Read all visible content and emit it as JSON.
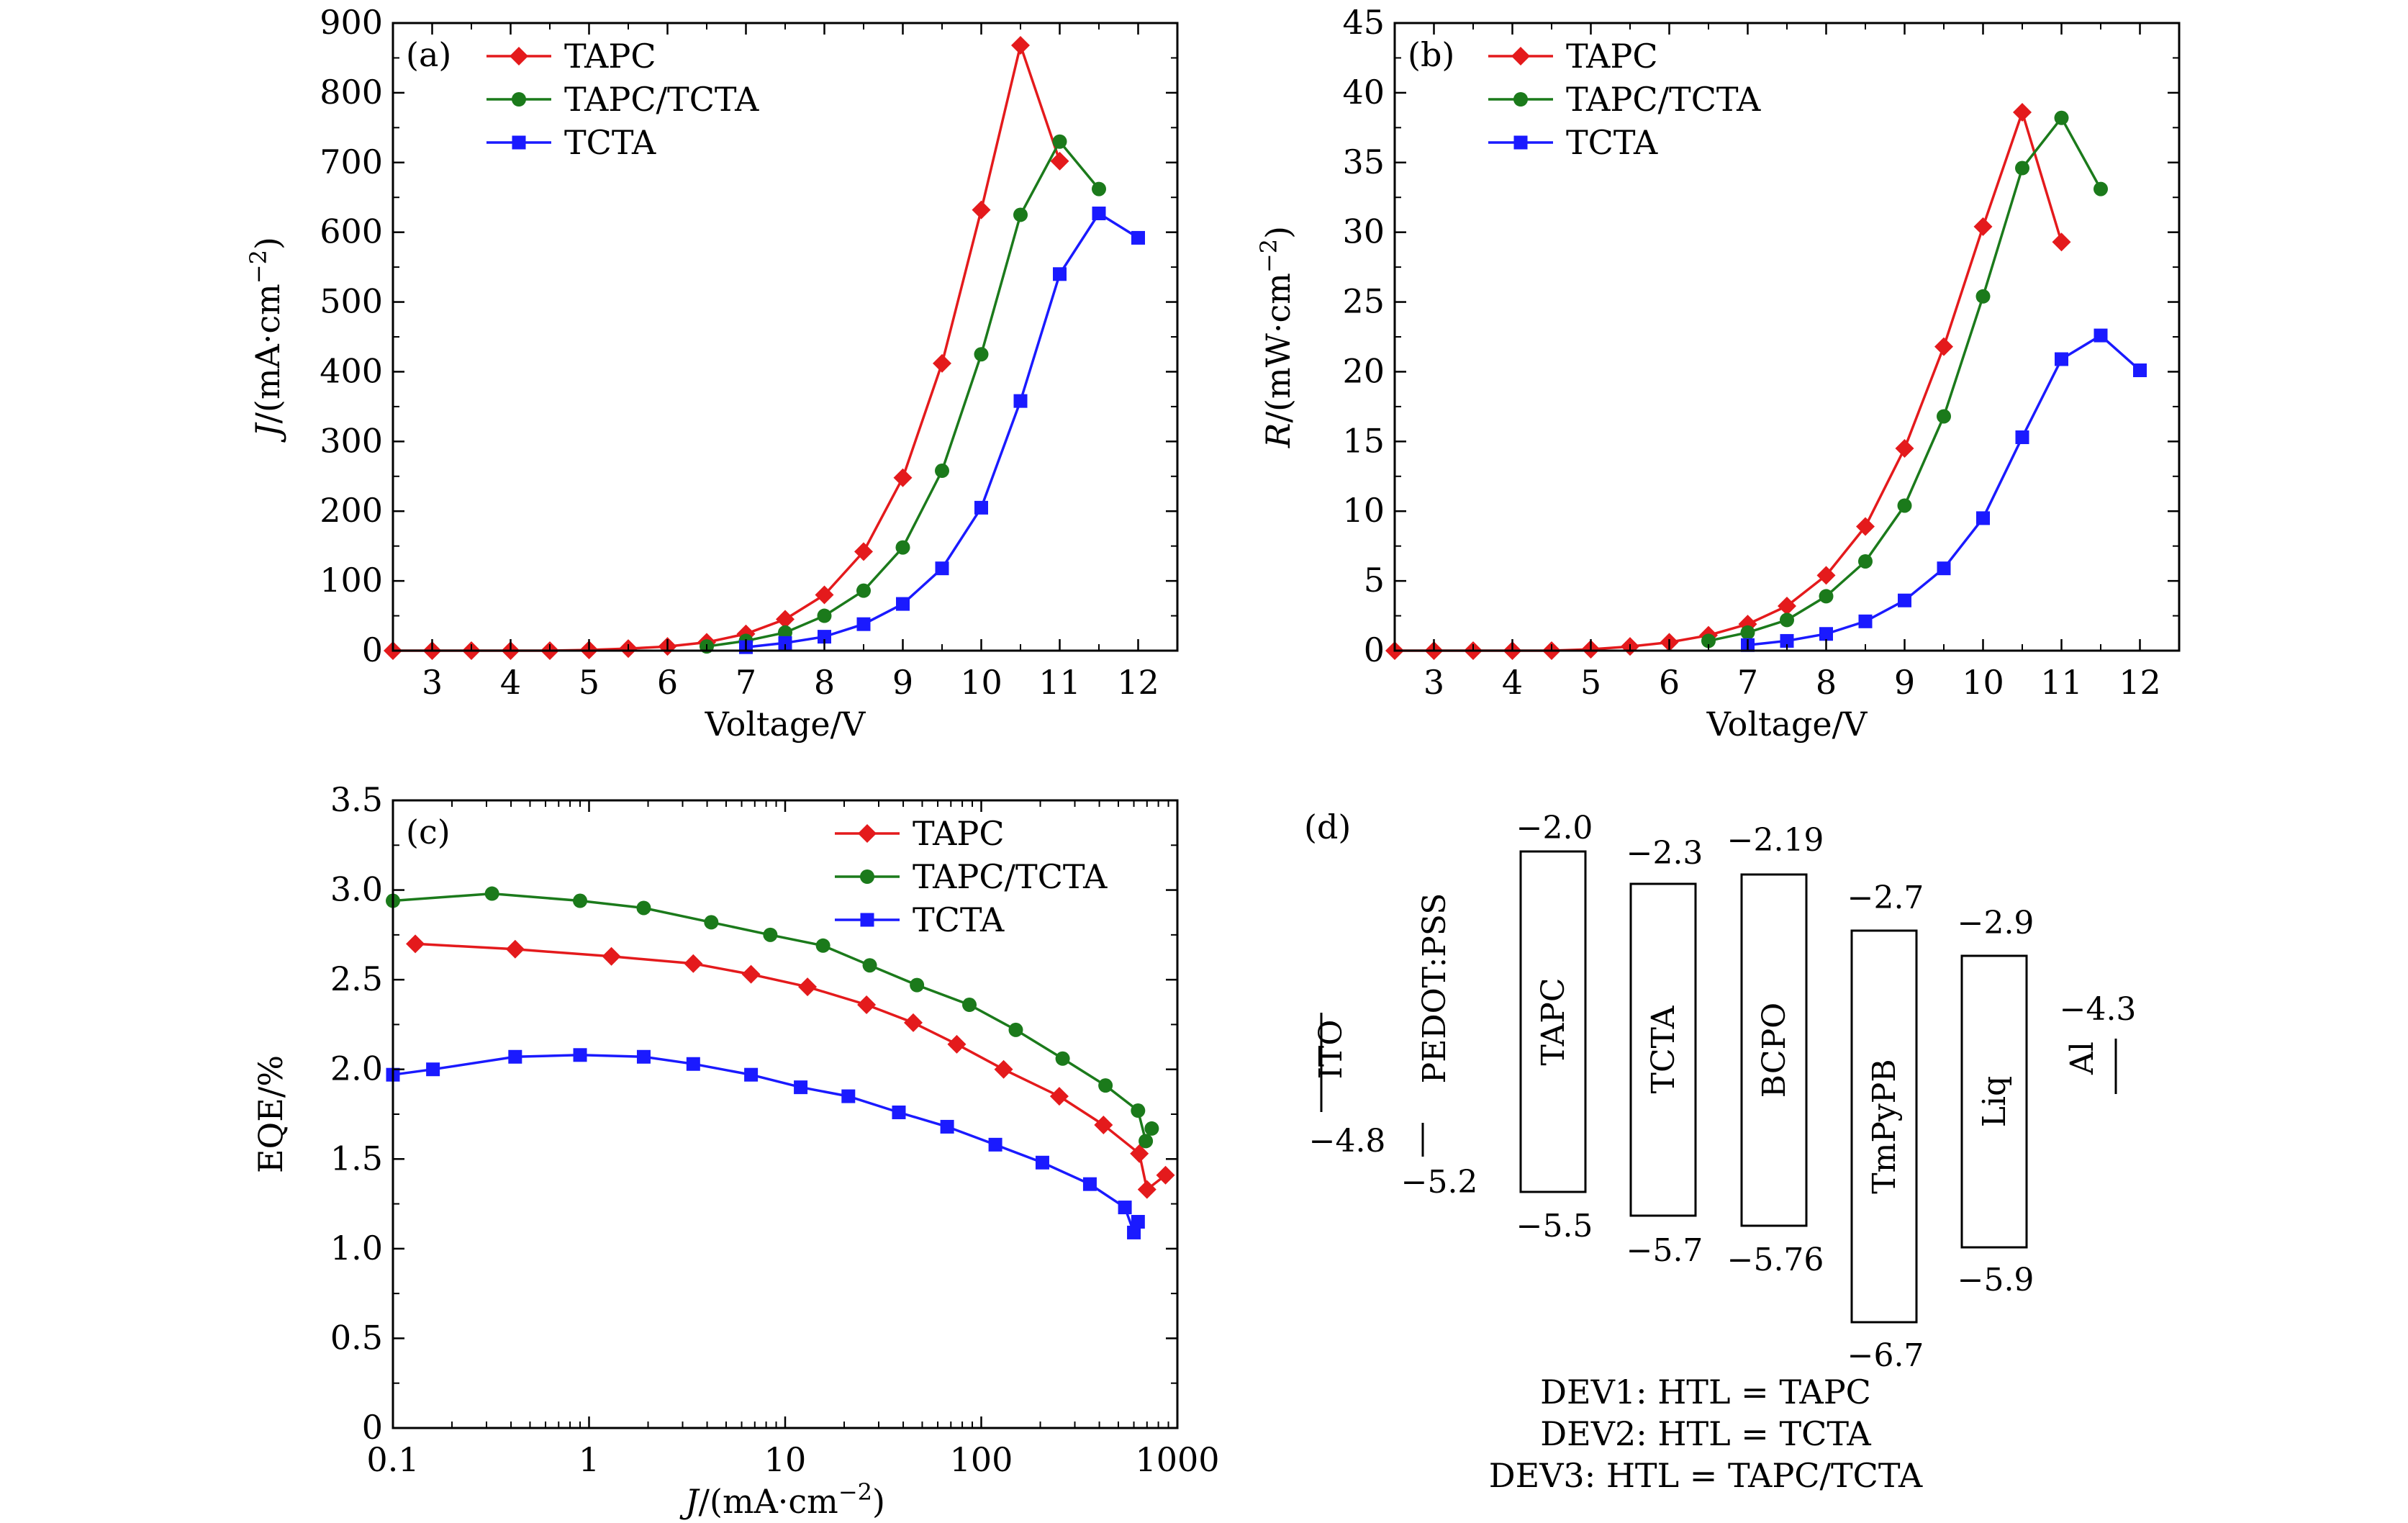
{
  "chart_data": [
    {
      "panel": "(a)",
      "type": "line",
      "xlabel": "Voltage/V",
      "ylabel": "J/(mA·cm⁻²)",
      "xlim": [
        2.5,
        12.5
      ],
      "ylim": [
        0,
        900
      ],
      "xticks": [
        "3",
        "4",
        "5",
        "6",
        "7",
        "8",
        "9",
        "10",
        "11",
        "12"
      ],
      "yticks": [
        "0",
        "100",
        "200",
        "300",
        "400",
        "500",
        "600",
        "700",
        "800",
        "900"
      ],
      "legend_position": "top-left",
      "series": [
        {
          "name": "TAPC",
          "color": "#e41a1c",
          "marker": "diamond",
          "x": [
            2.5,
            3,
            3.5,
            4,
            4.5,
            5,
            5.5,
            6,
            6.5,
            7,
            7.5,
            8,
            8.5,
            9,
            9.5,
            10,
            10.5,
            11
          ],
          "y": [
            0,
            0,
            0,
            0,
            0,
            1,
            3,
            6,
            12,
            24,
            45,
            80,
            142,
            248,
            412,
            632,
            868,
            702
          ]
        },
        {
          "name": "TAPC/TCTA",
          "color": "#1b7a1b",
          "marker": "circle",
          "x": [
            6.5,
            7,
            7.5,
            8,
            8.5,
            9,
            9.5,
            10,
            10.5,
            11,
            11.5
          ],
          "y": [
            6,
            14,
            26,
            50,
            86,
            148,
            258,
            425,
            625,
            730,
            662
          ]
        },
        {
          "name": "TCTA",
          "color": "#1a1aff",
          "marker": "square",
          "x": [
            7,
            7.5,
            8,
            8.5,
            9,
            9.5,
            10,
            10.5,
            11,
            11.5,
            12
          ],
          "y": [
            5,
            11,
            20,
            38,
            67,
            118,
            205,
            358,
            540,
            627,
            592
          ]
        }
      ]
    },
    {
      "panel": "(b)",
      "type": "line",
      "xlabel": "Voltage/V",
      "ylabel": "R/(mW·cm⁻²)",
      "xlim": [
        2.5,
        12.5
      ],
      "ylim": [
        0,
        45
      ],
      "xticks": [
        "3",
        "4",
        "5",
        "6",
        "7",
        "8",
        "9",
        "10",
        "11",
        "12"
      ],
      "yticks": [
        "0",
        "5",
        "10",
        "15",
        "20",
        "25",
        "30",
        "35",
        "40",
        "45"
      ],
      "legend_position": "top-left",
      "series": [
        {
          "name": "TAPC",
          "color": "#e41a1c",
          "marker": "diamond",
          "x": [
            2.5,
            3,
            3.5,
            4,
            4.5,
            5,
            5.5,
            6,
            6.5,
            7,
            7.5,
            8,
            8.5,
            9,
            9.5,
            10,
            10.5,
            11
          ],
          "y": [
            0,
            0,
            0,
            0,
            0,
            0.1,
            0.3,
            0.6,
            1.1,
            1.9,
            3.2,
            5.4,
            8.9,
            14.5,
            21.8,
            30.4,
            38.6,
            29.3
          ]
        },
        {
          "name": "TAPC/TCTA",
          "color": "#1b7a1b",
          "marker": "circle",
          "x": [
            6.5,
            7,
            7.5,
            8,
            8.5,
            9,
            9.5,
            10,
            10.5,
            11,
            11.5
          ],
          "y": [
            0.7,
            1.3,
            2.2,
            3.9,
            6.4,
            10.4,
            16.8,
            25.4,
            34.6,
            38.2,
            33.1
          ]
        },
        {
          "name": "TCTA",
          "color": "#1a1aff",
          "marker": "square",
          "x": [
            7,
            7.5,
            8,
            8.5,
            9,
            9.5,
            10,
            10.5,
            11,
            11.5,
            12
          ],
          "y": [
            0.4,
            0.7,
            1.2,
            2.1,
            3.6,
            5.9,
            9.5,
            15.3,
            20.9,
            22.6,
            20.1
          ]
        }
      ]
    },
    {
      "panel": "(c)",
      "type": "line",
      "xlabel": "J/(mA·cm⁻²)",
      "ylabel": "EQE/%",
      "xscale": "log",
      "xlim": [
        0.1,
        1000
      ],
      "ylim": [
        0,
        3.5
      ],
      "xticks": [
        "0.1",
        "1",
        "10",
        "100",
        "1000"
      ],
      "yticks": [
        "0",
        "0.5",
        "1.0",
        "1.5",
        "2.0",
        "2.5",
        "3.0",
        "3.5"
      ],
      "legend_position": "top-right",
      "series": [
        {
          "name": "TAPC",
          "color": "#e41a1c",
          "marker": "diamond",
          "x": [
            0.13,
            0.42,
            1.3,
            3.4,
            6.7,
            13,
            26,
            45,
            75,
            130,
            250,
            420,
            640,
            700,
            870
          ],
          "y": [
            2.7,
            2.67,
            2.63,
            2.59,
            2.53,
            2.46,
            2.36,
            2.26,
            2.14,
            2.0,
            1.85,
            1.69,
            1.53,
            1.33,
            1.41
          ]
        },
        {
          "name": "TAPC/TCTA",
          "color": "#1b7a1b",
          "marker": "circle",
          "x": [
            0.1,
            0.32,
            0.9,
            1.9,
            4.2,
            8.4,
            15.6,
            27,
            47,
            87,
            150,
            260,
            430,
            630,
            690,
            740
          ],
          "y": [
            2.94,
            2.98,
            2.94,
            2.9,
            2.82,
            2.75,
            2.69,
            2.58,
            2.47,
            2.36,
            2.22,
            2.06,
            1.91,
            1.77,
            1.6,
            1.67
          ]
        },
        {
          "name": "TCTA",
          "color": "#1a1aff",
          "marker": "square",
          "x": [
            0.1,
            0.16,
            0.42,
            0.9,
            1.9,
            3.4,
            6.7,
            12,
            21,
            38,
            67,
            118,
            205,
            358,
            540,
            600,
            630
          ],
          "y": [
            1.97,
            2.0,
            2.07,
            2.08,
            2.07,
            2.03,
            1.97,
            1.9,
            1.85,
            1.76,
            1.68,
            1.58,
            1.48,
            1.36,
            1.23,
            1.09,
            1.15
          ]
        }
      ]
    }
  ],
  "panel_d": {
    "tag": "(d)",
    "layers": [
      {
        "name": "ITO",
        "lumo": "",
        "homo": "−4.8",
        "kind": "line"
      },
      {
        "name": "PEDOT:PSS",
        "lumo": "",
        "homo": "−5.2",
        "kind": "line"
      },
      {
        "name": "TAPC",
        "lumo": "−2.0",
        "homo": "−5.5",
        "kind": "box"
      },
      {
        "name": "TCTA",
        "lumo": "−2.3",
        "homo": "−5.7",
        "kind": "box"
      },
      {
        "name": "BCPO",
        "lumo": "−2.19",
        "homo": "−5.76",
        "kind": "box"
      },
      {
        "name": "TmPyPB",
        "lumo": "−2.7",
        "homo": "−6.7",
        "kind": "box"
      },
      {
        "name": "Liq",
        "lumo": "−2.9",
        "homo": "−5.9",
        "kind": "box"
      },
      {
        "name": "Al",
        "lumo": "−4.3",
        "homo": "",
        "kind": "line"
      }
    ],
    "devices": [
      "DEV1: HTL = TAPC",
      "DEV2: HTL = TCTA",
      "DEV3: HTL = TAPC/TCTA"
    ]
  }
}
